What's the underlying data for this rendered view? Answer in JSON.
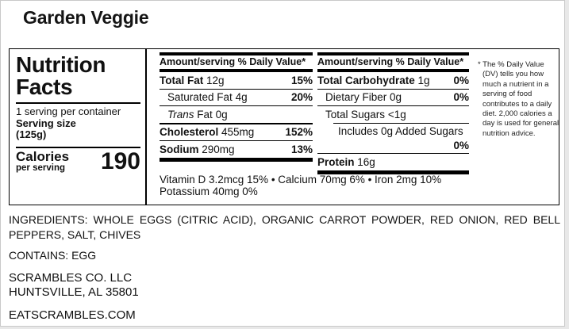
{
  "page_title": "Garden Veggie",
  "nutrition_label": {
    "panel": {
      "title_line1": "Nutrition",
      "title_line2": "Facts",
      "servings_per_container": "1 serving per container",
      "serving_size_label": "Serving size",
      "serving_size_value": "(125g)",
      "calories_label": "Calories",
      "calories_sublabel": "per serving",
      "calories_value": "190"
    },
    "column_header": "Amount/serving % Daily Value*",
    "column1": {
      "rows": [
        {
          "name": "Total Fat",
          "amount": "12g",
          "dv": "15%"
        },
        {
          "name": "Saturated Fat",
          "amount": "4g",
          "dv": "20%"
        },
        {
          "name_italic": "Trans",
          "name": "Fat",
          "amount": "0g",
          "dv": ""
        },
        {
          "name": "Cholesterol",
          "amount": "455mg",
          "dv": "152%"
        },
        {
          "name": "Sodium",
          "amount": "290mg",
          "dv": "13%"
        }
      ]
    },
    "column2": {
      "rows": [
        {
          "name": "Total Carbohydrate",
          "amount": "1g",
          "dv": "0%"
        },
        {
          "name": "Dietary Fiber",
          "amount": "0g",
          "dv": "0%"
        },
        {
          "name": "Total Sugars",
          "amount": "<1g",
          "dv": ""
        },
        {
          "name": "Includes 0g Added Sugars",
          "amount": "",
          "dv": "0%"
        },
        {
          "name": "Protein",
          "amount": "16g",
          "dv": ""
        }
      ]
    },
    "micronutrients_line1": "Vitamin D 3.2mcg 15% • Calcium 70mg 6% • Iron 2mg 10%",
    "micronutrients_line2": "Potassium 40mg 0%",
    "footnote": "* The % Daily Value (DV) tells you how much a nutrient in a serving of food contributes to a daily diet. 2,000 calories a day is used for general nutrition advice."
  },
  "ingredients": "INGREDIENTS: WHOLE EGGS (CITRIC ACID), ORGANIC CARROT POWDER, RED ONION, RED BELL PEPPERS, SALT, CHIVES",
  "contains": "CONTAINS: EGG",
  "manufacturer_line1": "SCRAMBLES CO. LLC",
  "manufacturer_line2": "HUNTSVILLE, AL 35801",
  "website": "EATSCRAMBLES.COM",
  "colors": {
    "text": "#111111",
    "rule": "#000000",
    "page_border": "#c9c9c9",
    "background": "#e8e8e8"
  }
}
